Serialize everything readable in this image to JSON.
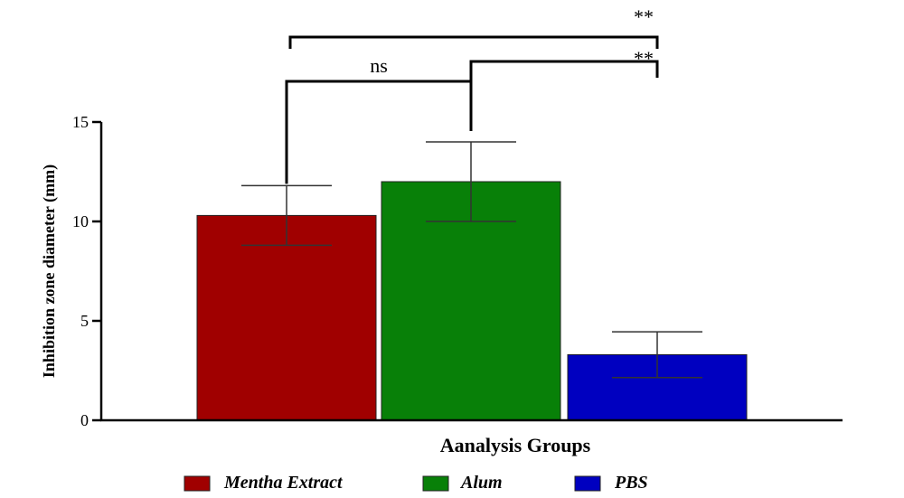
{
  "chart_data": {
    "type": "bar",
    "title": "",
    "xlabel": "Aanalysis Groups",
    "ylabel": "Inhibition zone diameter (mm)",
    "ylim": [
      0,
      15
    ],
    "yticks": [
      0,
      5,
      10,
      15
    ],
    "grid": false,
    "legend_position": "bottom",
    "categories": [
      "Mentha Extract",
      "Alum",
      "PBS"
    ],
    "values": [
      10.3,
      12.0,
      3.3
    ],
    "errors": [
      1.5,
      2.0,
      1.15
    ],
    "colors": [
      "#a00000",
      "#088008",
      "#0000c0"
    ],
    "significance": [
      {
        "from": 0,
        "to": 1,
        "label": "ns"
      },
      {
        "from": 1,
        "to": 2,
        "label": "**"
      },
      {
        "from": 0,
        "to": 2,
        "label": "**"
      }
    ]
  }
}
